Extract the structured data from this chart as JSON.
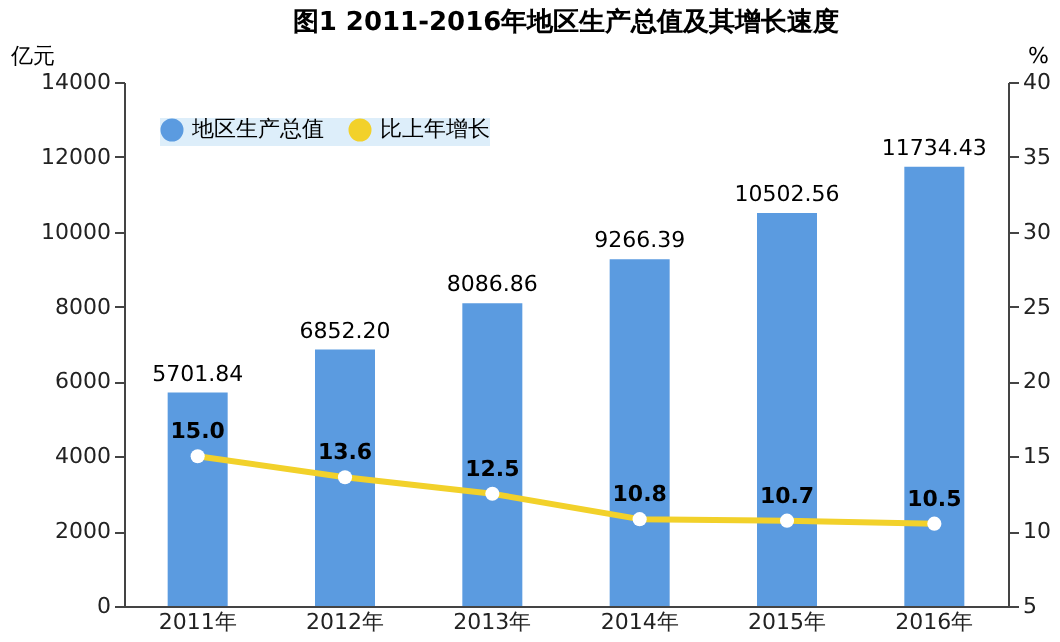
{
  "chart_data": {
    "type": "bar",
    "title": "图1  2011-2016年地区生产总值及其增长速度",
    "ylabel": "亿元",
    "y2label": "%",
    "categories": [
      "2011年",
      "2012年",
      "2013年",
      "2014年",
      "2015年",
      "2016年"
    ],
    "series": [
      {
        "name": "地区生产总值",
        "color": "#5b9be0",
        "values": [
          5701.84,
          6852.2,
          8086.86,
          9266.39,
          10502.56,
          11734.43
        ],
        "value_labels": [
          "5701.84",
          "6852.20",
          "8086.86",
          "9266.39",
          "10502.56",
          "11734.43"
        ]
      },
      {
        "name": "比上年增长",
        "type": "line",
        "axis": "y2",
        "color": "#f2d12a",
        "marker": "circle",
        "values": [
          15.0,
          13.6,
          12.5,
          10.8,
          10.7,
          10.5
        ],
        "value_labels": [
          "15.0",
          "13.6",
          "12.5",
          "10.8",
          "10.7",
          "10.5"
        ]
      }
    ],
    "ylim": [
      0,
      14000
    ],
    "yticks": [
      0,
      2000,
      4000,
      6000,
      8000,
      10000,
      12000,
      14000
    ],
    "y2lim": [
      5,
      40
    ],
    "y2ticks": [
      5,
      10,
      15,
      20,
      25,
      30,
      35,
      40
    ],
    "grid": false,
    "legend": "top left"
  }
}
